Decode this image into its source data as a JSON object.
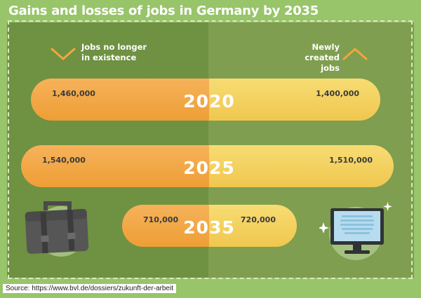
{
  "title": "Gains and losses of jobs in Germany by 2035",
  "headers": {
    "left": "Jobs no longer\nin existence",
    "right": "Newly created\njobs"
  },
  "icons": {
    "left_chevron": "chevron-down-icon",
    "right_chevron": "chevron-up-icon",
    "briefcase": "briefcase-icon",
    "computer": "computer-monitor-icon"
  },
  "colors": {
    "lost_bar": "#ef9f37",
    "created_bar": "#f2cd55",
    "background": "#98c46a"
  },
  "chart_data": {
    "type": "bar",
    "categories": [
      "2020",
      "2025",
      "2035"
    ],
    "series": [
      {
        "name": "Jobs no longer in existence",
        "values": [
          1460000,
          1540000,
          710000
        ],
        "labels": [
          "1,460,000",
          "1,540,000",
          "710,000"
        ]
      },
      {
        "name": "Newly created jobs",
        "values": [
          1400000,
          1510000,
          720000
        ],
        "labels": [
          "1,400,000",
          "1,510,000",
          "720,000"
        ]
      }
    ]
  },
  "source": "Source: https://www.bvl.de/dossiers/zukunft-der-arbeit"
}
